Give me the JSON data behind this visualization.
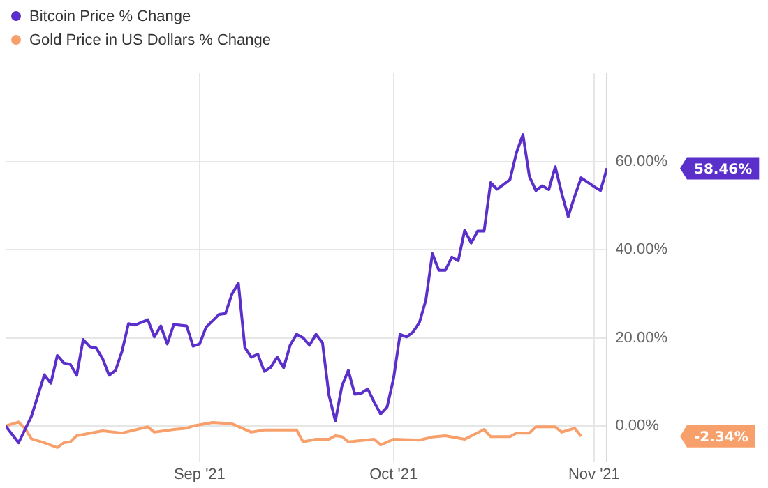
{
  "chart_data": {
    "type": "line",
    "legend": "top left",
    "grid": true,
    "marker": "none",
    "line_style": "solid",
    "xlim": [
      "2021-08-02",
      "2021-11-03"
    ],
    "xticks": [
      {
        "value": "2021-09-01",
        "label": "Sep '21"
      },
      {
        "value": "2021-10-01",
        "label": "Oct '21"
      },
      {
        "value": "2021-11-01",
        "label": "Nov '21"
      }
    ],
    "ylim": [
      -8,
      80
    ],
    "yticks": [
      {
        "value": 0,
        "label": "0.00%"
      },
      {
        "value": 20,
        "label": "20.00%"
      },
      {
        "value": 40,
        "label": "40.00%"
      },
      {
        "value": 60,
        "label": "60.00%"
      }
    ],
    "annotations": [
      "58.46%",
      "-2.34%"
    ],
    "series": [
      {
        "name": "Bitcoin Price % Change",
        "color": "#5b2fc9",
        "x": [
          "2021-08-02",
          "2021-08-04",
          "2021-08-06",
          "2021-08-08",
          "2021-08-09",
          "2021-08-10",
          "2021-08-11",
          "2021-08-12",
          "2021-08-13",
          "2021-08-14",
          "2021-08-15",
          "2021-08-16",
          "2021-08-17",
          "2021-08-18",
          "2021-08-19",
          "2021-08-20",
          "2021-08-21",
          "2021-08-22",
          "2021-08-24",
          "2021-08-25",
          "2021-08-26",
          "2021-08-27",
          "2021-08-28",
          "2021-08-30",
          "2021-08-31",
          "2021-09-01",
          "2021-09-02",
          "2021-09-04",
          "2021-09-05",
          "2021-09-06",
          "2021-09-07",
          "2021-09-08",
          "2021-09-09",
          "2021-09-10",
          "2021-09-11",
          "2021-09-12",
          "2021-09-13",
          "2021-09-14",
          "2021-09-15",
          "2021-09-16",
          "2021-09-17",
          "2021-09-18",
          "2021-09-19",
          "2021-09-20",
          "2021-09-21",
          "2021-09-22",
          "2021-09-23",
          "2021-09-24",
          "2021-09-25",
          "2021-09-26",
          "2021-09-27",
          "2021-09-28",
          "2021-09-29",
          "2021-09-30",
          "2021-10-01",
          "2021-10-02",
          "2021-10-03",
          "2021-10-04",
          "2021-10-05",
          "2021-10-06",
          "2021-10-07",
          "2021-10-08",
          "2021-10-09",
          "2021-10-10",
          "2021-10-11",
          "2021-10-12",
          "2021-10-13",
          "2021-10-14",
          "2021-10-15",
          "2021-10-16",
          "2021-10-17",
          "2021-10-18",
          "2021-10-19",
          "2021-10-20",
          "2021-10-21",
          "2021-10-22",
          "2021-10-23",
          "2021-10-24",
          "2021-10-25",
          "2021-10-26",
          "2021-10-27",
          "2021-10-28",
          "2021-10-29",
          "2021-10-30",
          "2021-10-31",
          "2021-11-01",
          "2021-11-02",
          "2021-11-03"
        ],
        "values": [
          0,
          -3.8,
          2.2,
          11.6,
          9.7,
          16,
          14.3,
          14,
          11.5,
          19.6,
          18,
          17.7,
          15.3,
          11.5,
          12.6,
          16.9,
          23.2,
          22.9,
          24.1,
          20.2,
          22.7,
          18.6,
          23,
          22.7,
          18.1,
          18.6,
          22.4,
          25.3,
          25.5,
          29.9,
          32.4,
          17.8,
          15.6,
          16.3,
          12.4,
          13.3,
          15.6,
          13.2,
          18.3,
          20.8,
          20,
          18.3,
          20.8,
          18.9,
          7,
          1.1,
          9,
          12.6,
          7.2,
          7.4,
          8.4,
          5.4,
          2.7,
          4.3,
          10.8,
          20.8,
          20.2,
          21.3,
          23.5,
          28.6,
          39.1,
          35.3,
          35.3,
          38.3,
          37.5,
          44.4,
          41.5,
          44.2,
          44.2,
          55.2,
          53.7,
          54.8,
          55.9,
          62,
          66.1,
          56.6,
          53.4,
          54.5,
          53.6,
          58.8,
          52.8,
          47.5,
          52.1,
          56.3,
          55.3,
          54.3,
          53.4,
          58.46
        ]
      },
      {
        "name": "Gold Price in US Dollars % Change",
        "color": "#f7a06b",
        "x": [
          "2021-08-02",
          "2021-08-04",
          "2021-08-05",
          "2021-08-06",
          "2021-08-08",
          "2021-08-10",
          "2021-08-11",
          "2021-08-12",
          "2021-08-13",
          "2021-08-17",
          "2021-08-20",
          "2021-08-24",
          "2021-08-25",
          "2021-08-28",
          "2021-08-30",
          "2021-08-31",
          "2021-09-03",
          "2021-09-06",
          "2021-09-09",
          "2021-09-11",
          "2021-09-16",
          "2021-09-17",
          "2021-09-19",
          "2021-09-21",
          "2021-09-22",
          "2021-09-23",
          "2021-09-24",
          "2021-09-28",
          "2021-09-29",
          "2021-10-01",
          "2021-10-05",
          "2021-10-07",
          "2021-10-09",
          "2021-10-12",
          "2021-10-15",
          "2021-10-16",
          "2021-10-19",
          "2021-10-20",
          "2021-10-22",
          "2021-10-23",
          "2021-10-26",
          "2021-10-27",
          "2021-10-29",
          "2021-10-30"
        ],
        "values": [
          0,
          0.9,
          -0.5,
          -2.9,
          -3.8,
          -4.9,
          -3.8,
          -3.6,
          -2.2,
          -1.1,
          -1.6,
          -0.2,
          -1.4,
          -0.8,
          -0.5,
          0,
          0.8,
          0.5,
          -1.4,
          -0.9,
          -0.9,
          -3.6,
          -3,
          -3,
          -2.2,
          -2.4,
          -3.6,
          -3,
          -4.3,
          -3,
          -3.2,
          -2.5,
          -2.2,
          -3,
          -0.8,
          -2.4,
          -2.4,
          -1.6,
          -1.6,
          -0.2,
          -0.2,
          -1.4,
          -0.5,
          -2.34
        ]
      }
    ]
  }
}
